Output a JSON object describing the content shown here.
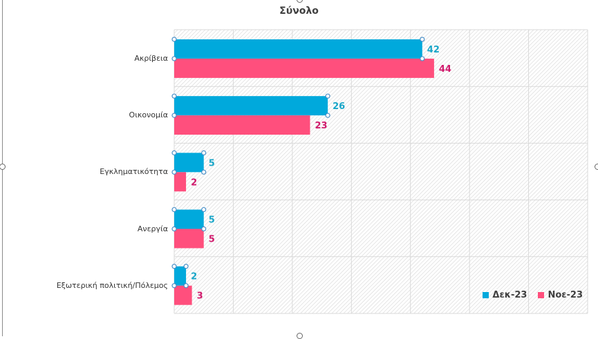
{
  "chart_data": {
    "type": "bar",
    "orientation": "horizontal",
    "title": "Σύνολο",
    "xlabel": "",
    "ylabel": "",
    "xlim": [
      0,
      70
    ],
    "x_gridline_step": 10,
    "grid": true,
    "categories": [
      "Ακρίβεια",
      "Οικονομία",
      "Εγκληματικότητα",
      "Ανεργία",
      "Εξωτερική πολιτική/Πόλεμος"
    ],
    "series": [
      {
        "name": "Δεκ-23",
        "color": "#00A9DC",
        "label_color": "#1AA6C8",
        "values": [
          42,
          26,
          5,
          5,
          2
        ]
      },
      {
        "name": "Νοε-23",
        "color": "#FF4F7D",
        "label_color": "#D01A6C",
        "values": [
          44,
          23,
          2,
          5,
          3
        ]
      }
    ],
    "data_labels": true,
    "selected_series": "Δεκ-23",
    "legend": {
      "position": "bottom-right"
    }
  }
}
